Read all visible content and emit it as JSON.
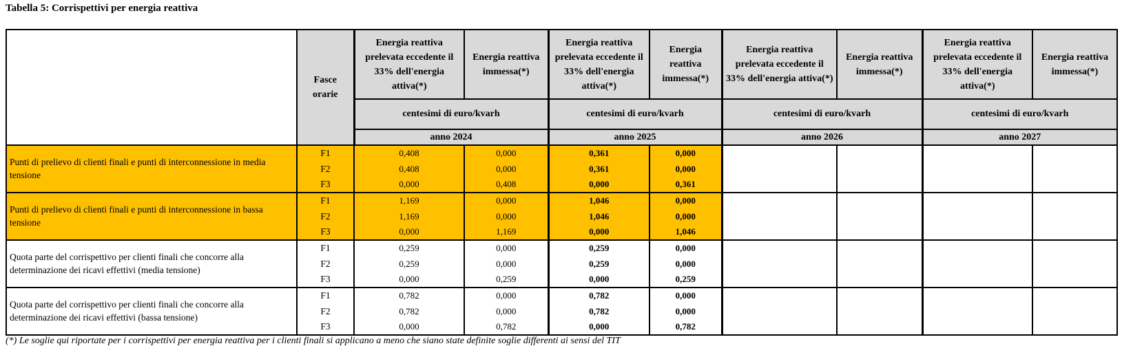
{
  "title": "Tabella 5: Corrispettivi per energia reattiva",
  "footnote": "(*) Le soglie qui riportate per i corrispettivi per energia reattiva per i clienti finali si applicano a meno che siano state definite soglie differenti ai sensi del TIT",
  "colors": {
    "highlight_orange": "#ffc000",
    "header_gray": "#d9d9d9",
    "border_black": "#000000"
  },
  "table": {
    "fasce_header": "Fasce orarie",
    "col_prelevata": "Energia reattiva prelevata eccedente il 33% dell'energia attiva(*)",
    "col_immessa": "Energia reattiva immessa(*)",
    "unit_label": "centesimi di euro/kvarh",
    "years": [
      "anno 2024",
      "anno 2025",
      "anno 2026",
      "anno 2027"
    ],
    "note": "values are [anno2024 prelevata, anno2024 immessa, anno2025 prelevata, anno2025 immessa]; anno 2026 and anno 2027 cells are empty",
    "groups": [
      {
        "label": "Punti di prelievo di clienti finali e punti di interconnessione in media tensione",
        "highlight": true,
        "rows": [
          {
            "fascia": "F1",
            "values": [
              "0,408",
              "0,000",
              "0,361",
              "0,000"
            ]
          },
          {
            "fascia": "F2",
            "values": [
              "0,408",
              "0,000",
              "0,361",
              "0,000"
            ]
          },
          {
            "fascia": "F3",
            "values": [
              "0,000",
              "0,408",
              "0,000",
              "0,361"
            ]
          }
        ]
      },
      {
        "label": "Punti di prelievo di clienti finali e punti di interconnessione in bassa tensione",
        "highlight": true,
        "rows": [
          {
            "fascia": "F1",
            "values": [
              "1,169",
              "0,000",
              "1,046",
              "0,000"
            ]
          },
          {
            "fascia": "F2",
            "values": [
              "1,169",
              "0,000",
              "1,046",
              "0,000"
            ]
          },
          {
            "fascia": "F3",
            "values": [
              "0,000",
              "1,169",
              "0,000",
              "1,046"
            ]
          }
        ]
      },
      {
        "label": "Quota parte del corrispettivo per clienti finali  che concorre alla determinazione dei ricavi effettivi (media tensione)",
        "highlight": false,
        "rows": [
          {
            "fascia": "F1",
            "values": [
              "0,259",
              "0,000",
              "0,259",
              "0,000"
            ]
          },
          {
            "fascia": "F2",
            "values": [
              "0,259",
              "0,000",
              "0,259",
              "0,000"
            ]
          },
          {
            "fascia": "F3",
            "values": [
              "0,000",
              "0,259",
              "0,000",
              "0,259"
            ]
          }
        ]
      },
      {
        "label": "Quota parte del corrispettivo per clienti finali che concorre alla determinazione dei ricavi effettivi (bassa tensione)",
        "highlight": false,
        "rows": [
          {
            "fascia": "F1",
            "values": [
              "0,782",
              "0,000",
              "0,782",
              "0,000"
            ]
          },
          {
            "fascia": "F2",
            "values": [
              "0,782",
              "0,000",
              "0,782",
              "0,000"
            ]
          },
          {
            "fascia": "F3",
            "values": [
              "0,000",
              "0,782",
              "0,000",
              "0,782"
            ]
          }
        ]
      }
    ]
  }
}
